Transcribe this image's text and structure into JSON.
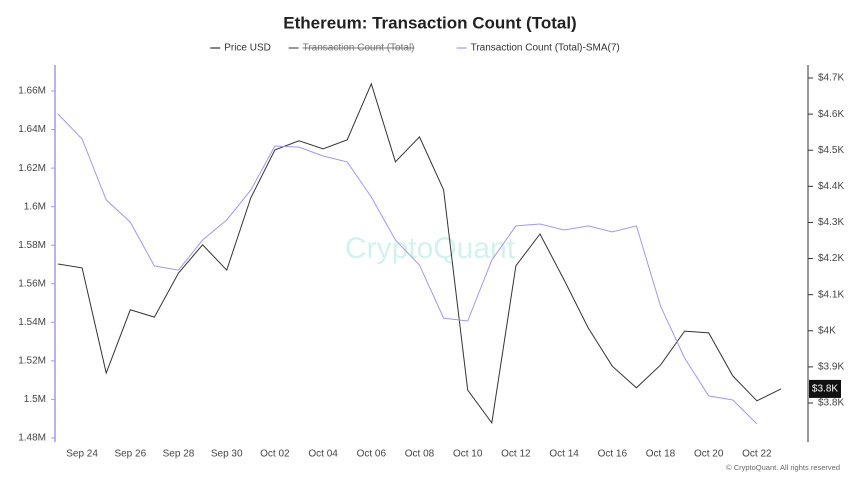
{
  "chart_data": {
    "type": "line",
    "title": "Ethereum: Transaction Count (Total)",
    "watermark": "CryptoQuant",
    "footer": "© CryptoQuant. All rights reserved",
    "categories": [
      null,
      "Sep 24",
      null,
      "Sep 26",
      null,
      "Sep 28",
      null,
      "Sep 30",
      null,
      "Oct 02",
      null,
      "Oct 04",
      null,
      "Oct 06",
      null,
      "Oct 08",
      null,
      "Oct 10",
      null,
      "Oct 12",
      null,
      "Oct 14",
      null,
      "Oct 16",
      null,
      "Oct 18",
      null,
      "Oct 20",
      null,
      "Oct 22",
      null
    ],
    "series": [
      {
        "name": "Price USD",
        "color": "#333333",
        "axis": "y2",
        "values": [
          4185,
          4174,
          3883,
          4058,
          4038,
          4160,
          4238,
          4168,
          4368,
          4501,
          4526,
          4504,
          4529,
          4684,
          4468,
          4537,
          4390,
          3836,
          3745,
          4180,
          4268,
          4141,
          4008,
          3902,
          3842,
          3905,
          3999,
          3994,
          3875,
          3806,
          3839
        ]
      },
      {
        "name": "Transaction Count (Total)-SMA(7)",
        "color": "#a596ee",
        "values": [
          1648100,
          1635100,
          1603500,
          1592000,
          1569200,
          1567100,
          1582700,
          1593100,
          1608600,
          1631500,
          1630900,
          1626300,
          1623200,
          1605000,
          1582700,
          1569700,
          1542200,
          1540700,
          1572300,
          1590000,
          1591000,
          1587900,
          1590000,
          1586900,
          1590000,
          1548500,
          1521500,
          1501800,
          1499700,
          1487300,
          null
        ]
      }
    ],
    "hidden_series": [
      {
        "name": "Transaction Count (Total)",
        "color": "#555555"
      }
    ],
    "ylim": [
      1477900,
      1673500
    ],
    "yticks": [
      {
        "value": 1480000,
        "label": "1.48M"
      },
      {
        "value": 1500000,
        "label": "1.5M"
      },
      {
        "value": 1520000,
        "label": "1.52M"
      },
      {
        "value": 1540000,
        "label": "1.54M"
      },
      {
        "value": 1560000,
        "label": "1.56M"
      },
      {
        "value": 1580000,
        "label": "1.58M"
      },
      {
        "value": 1600000,
        "label": "1.6M"
      },
      {
        "value": 1620000,
        "label": "1.62M"
      },
      {
        "value": 1640000,
        "label": "1.64M"
      },
      {
        "value": 1660000,
        "label": "1.66M"
      }
    ],
    "y2lim": [
      3692,
      4736
    ],
    "y2ticks": [
      {
        "value": 3800,
        "label": "$3.8K"
      },
      {
        "value": 3900,
        "label": "$3.9K"
      },
      {
        "value": 4000,
        "label": "$4K"
      },
      {
        "value": 4100,
        "label": "$4.1K"
      },
      {
        "value": 4200,
        "label": "$4.2K"
      },
      {
        "value": 4300,
        "label": "$4.3K"
      },
      {
        "value": 4400,
        "label": "$4.4K"
      },
      {
        "value": 4500,
        "label": "$4.5K"
      },
      {
        "value": 4600,
        "label": "$4.6K"
      },
      {
        "value": 4700,
        "label": "$4.7K"
      }
    ],
    "annotations": [
      {
        "value": 3839,
        "label": "$3.8K"
      }
    ],
    "grid": false
  }
}
